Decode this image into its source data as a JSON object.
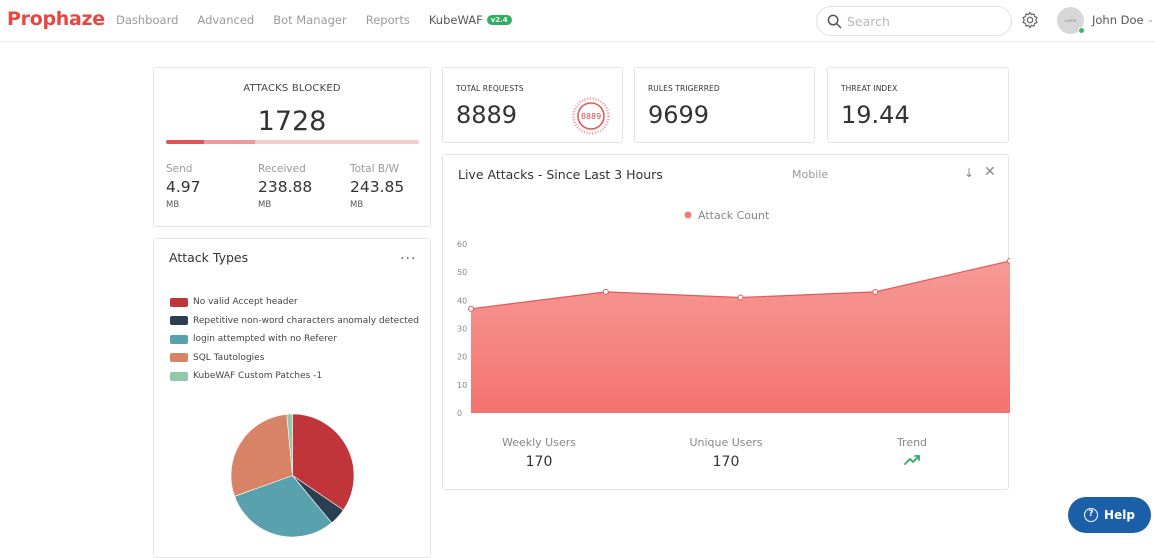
{
  "header": {
    "brand": "Prophaze",
    "nav": [
      "Dashboard",
      "Advanced",
      "Bot Manager",
      "Reports",
      "KubeWAF"
    ],
    "version_badge": "v2.4",
    "search_placeholder": "Search",
    "avatar_text": "name",
    "user_name": "John Doe"
  },
  "attacks_blocked": {
    "title": "ATTACKS BLOCKED",
    "count": "1728",
    "progress_red": 0.15,
    "progress_mid": 0.35,
    "stats": [
      {
        "label": "Send",
        "value": "4.97",
        "unit": "MB"
      },
      {
        "label": "Received",
        "value": "238.88",
        "unit": "MB"
      },
      {
        "label": "Total B/W",
        "value": "243.85",
        "unit": "MB"
      }
    ]
  },
  "metrics": [
    {
      "label": "TOTAL REQUESTS",
      "value": "8889",
      "stamp": "8889"
    },
    {
      "label": "RULES TRIGERRED",
      "value": "9699"
    },
    {
      "label": "THREAT INDEX",
      "value": "19.44"
    }
  ],
  "attack_types": {
    "title": "Attack Types",
    "more": "...",
    "legend": [
      {
        "label": "No valid Accept header",
        "color": "#c0353a"
      },
      {
        "label": "Repetitive non-word characters anomaly detected",
        "color": "#2b3f52"
      },
      {
        "label": "login attempted with no Referer",
        "color": "#5aa1ae"
      },
      {
        "label": "SQL Tautologies",
        "color": "#d98366"
      },
      {
        "label": "KubeWAF Custom Patches -1",
        "color": "#8fc9a9"
      }
    ],
    "slices": [
      0.345,
      0.045,
      0.305,
      0.29,
      0.015
    ]
  },
  "live_attacks": {
    "title": "Live Attacks - Since Last 3 Hours",
    "device": "Mobile",
    "chart_data": {
      "type": "area",
      "series": [
        {
          "name": "Attack Count",
          "values": [
            37,
            43,
            41,
            43,
            54
          ],
          "color": "#f47b78"
        }
      ],
      "yticks": [
        0,
        10,
        20,
        30,
        40,
        50,
        60
      ],
      "ylim": [
        0,
        60
      ],
      "grid": false,
      "legend": "top-center"
    },
    "bottom": [
      {
        "label": "Weekly Users",
        "value": "170"
      },
      {
        "label": "Unique Users",
        "value": "170"
      },
      {
        "label": "Trend",
        "icon": "trend-up-icon"
      }
    ]
  },
  "help": {
    "label": "Help"
  },
  "colors": {
    "brand": "#e8473f",
    "help": "#1b5fa8",
    "area": "#f47b78",
    "online": "#2fbf5a"
  }
}
